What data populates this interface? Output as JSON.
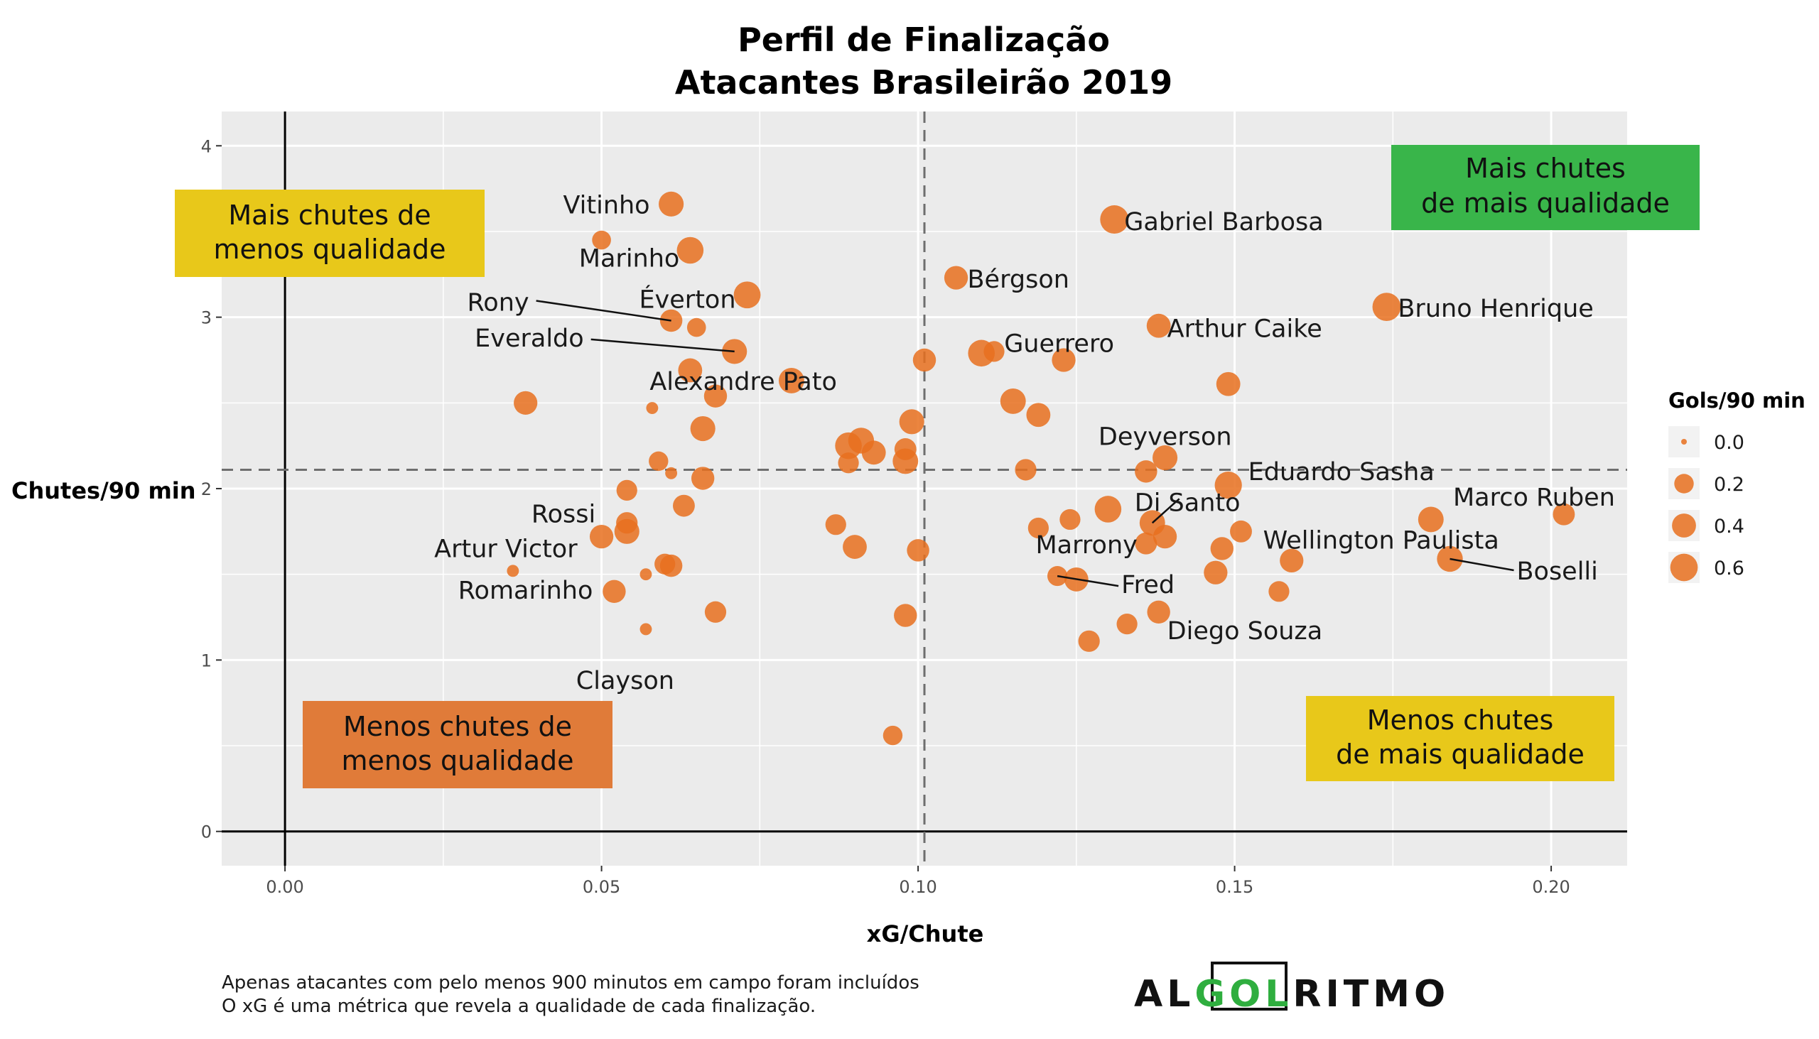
{
  "colors": {
    "point": "#E8701F",
    "panel": "#EBEBEB",
    "grid": "#FFFFFF",
    "box_yellow": "#E8C81A",
    "box_green": "#39B54A",
    "box_orange": "#E07B39",
    "logo_green": "#2FAE3F"
  },
  "footnote": {
    "line1": "Apenas atacantes com pelo menos 900 minutos em campo foram incluídos",
    "line2": "O xG é uma métrica que revela a qualidade de cada finalização."
  },
  "logo": {
    "part1": "AL",
    "part2": "GOL",
    "part3": "RITMO"
  },
  "quadrants": {
    "top_left": [
      "Mais chutes de",
      "menos qualidade"
    ],
    "top_right": [
      "Mais chutes",
      "de mais qualidade"
    ],
    "bottom_left": [
      "Menos chutes de",
      "menos qualidade"
    ],
    "bottom_right": [
      "Menos chutes",
      "de mais qualidade"
    ]
  },
  "chart_data": {
    "type": "scatter",
    "title": "Perfil de Finalização",
    "subtitle": "Atacantes Brasileirão 2019",
    "xlabel": "xG/Chute",
    "ylabel": "Chutes/90 min",
    "xlim": [
      -0.01,
      0.212
    ],
    "ylim": [
      -0.2,
      4.2
    ],
    "x_ticks": [
      0.0,
      0.05,
      0.1,
      0.15,
      0.2
    ],
    "x_tick_labels": [
      "0.00",
      "0.05",
      "0.10",
      "0.15",
      "0.20"
    ],
    "y_ticks": [
      0,
      1,
      2,
      3,
      4
    ],
    "y_tick_labels": [
      "0",
      "1",
      "2",
      "3",
      "4"
    ],
    "reference_lines": {
      "x": 0.101,
      "y": 2.11
    },
    "grid": true,
    "size_legend": {
      "title": "Gols/90 min",
      "position": "right",
      "values": [
        0.0,
        0.2,
        0.4,
        0.6
      ],
      "labels": [
        "0.0",
        "0.2",
        "0.4",
        "0.6"
      ]
    },
    "points": [
      {
        "x": 0.061,
        "y": 3.66,
        "g": 0.45,
        "label": "Vitinho"
      },
      {
        "x": 0.131,
        "y": 3.57,
        "g": 0.66,
        "label": "Gabriel Barbosa"
      },
      {
        "x": 0.05,
        "y": 3.45,
        "g": 0.18,
        "label": ""
      },
      {
        "x": 0.064,
        "y": 3.39,
        "g": 0.55,
        "label": "Marinho"
      },
      {
        "x": 0.106,
        "y": 3.23,
        "g": 0.38,
        "label": "Bérgson"
      },
      {
        "x": 0.073,
        "y": 3.13,
        "g": 0.56,
        "label": "Éverton"
      },
      {
        "x": 0.174,
        "y": 3.06,
        "g": 0.65,
        "label": "Bruno Henrique"
      },
      {
        "x": 0.061,
        "y": 2.98,
        "g": 0.32,
        "label": "Rony"
      },
      {
        "x": 0.138,
        "y": 2.95,
        "g": 0.4,
        "label": "Arthur Caike"
      },
      {
        "x": 0.065,
        "y": 2.94,
        "g": 0.18,
        "label": ""
      },
      {
        "x": 0.071,
        "y": 2.8,
        "g": 0.45,
        "label": "Everaldo"
      },
      {
        "x": 0.112,
        "y": 2.8,
        "g": 0.25,
        "label": ""
      },
      {
        "x": 0.11,
        "y": 2.79,
        "g": 0.55,
        "label": "Guerrero"
      },
      {
        "x": 0.101,
        "y": 2.75,
        "g": 0.35,
        "label": ""
      },
      {
        "x": 0.123,
        "y": 2.75,
        "g": 0.38,
        "label": ""
      },
      {
        "x": 0.064,
        "y": 2.69,
        "g": 0.4,
        "label": ""
      },
      {
        "x": 0.08,
        "y": 2.63,
        "g": 0.48,
        "label": "Alexandre Pato"
      },
      {
        "x": 0.149,
        "y": 2.61,
        "g": 0.4,
        "label": ""
      },
      {
        "x": 0.068,
        "y": 2.54,
        "g": 0.35,
        "label": ""
      },
      {
        "x": 0.115,
        "y": 2.51,
        "g": 0.48,
        "label": ""
      },
      {
        "x": 0.038,
        "y": 2.5,
        "g": 0.38,
        "label": ""
      },
      {
        "x": 0.058,
        "y": 2.47,
        "g": 0.02,
        "label": ""
      },
      {
        "x": 0.119,
        "y": 2.43,
        "g": 0.4,
        "label": ""
      },
      {
        "x": 0.099,
        "y": 2.39,
        "g": 0.45,
        "label": ""
      },
      {
        "x": 0.066,
        "y": 2.35,
        "g": 0.45,
        "label": ""
      },
      {
        "x": 0.091,
        "y": 2.28,
        "g": 0.5,
        "label": ""
      },
      {
        "x": 0.089,
        "y": 2.25,
        "g": 0.55,
        "label": ""
      },
      {
        "x": 0.098,
        "y": 2.23,
        "g": 0.3,
        "label": ""
      },
      {
        "x": 0.093,
        "y": 2.21,
        "g": 0.4,
        "label": ""
      },
      {
        "x": 0.139,
        "y": 2.18,
        "g": 0.45,
        "label": "Deyverson"
      },
      {
        "x": 0.098,
        "y": 2.16,
        "g": 0.48,
        "label": ""
      },
      {
        "x": 0.059,
        "y": 2.16,
        "g": 0.2,
        "label": ""
      },
      {
        "x": 0.089,
        "y": 2.15,
        "g": 0.25,
        "label": ""
      },
      {
        "x": 0.117,
        "y": 2.11,
        "g": 0.28,
        "label": ""
      },
      {
        "x": 0.136,
        "y": 2.1,
        "g": 0.32,
        "label": ""
      },
      {
        "x": 0.061,
        "y": 2.09,
        "g": 0.02,
        "label": ""
      },
      {
        "x": 0.066,
        "y": 2.06,
        "g": 0.35,
        "label": ""
      },
      {
        "x": 0.149,
        "y": 2.02,
        "g": 0.58,
        "label": "Eduardo Sasha"
      },
      {
        "x": 0.054,
        "y": 1.99,
        "g": 0.25,
        "label": ""
      },
      {
        "x": 0.063,
        "y": 1.9,
        "g": 0.3,
        "label": ""
      },
      {
        "x": 0.13,
        "y": 1.88,
        "g": 0.55,
        "label": ""
      },
      {
        "x": 0.202,
        "y": 1.85,
        "g": 0.3,
        "label": "Marco Ruben"
      },
      {
        "x": 0.124,
        "y": 1.82,
        "g": 0.25,
        "label": ""
      },
      {
        "x": 0.181,
        "y": 1.82,
        "g": 0.48,
        "label": "Wellington Paulista"
      },
      {
        "x": 0.137,
        "y": 1.8,
        "g": 0.48,
        "label": "Di Santo"
      },
      {
        "x": 0.054,
        "y": 1.8,
        "g": 0.28,
        "label": ""
      },
      {
        "x": 0.087,
        "y": 1.79,
        "g": 0.25,
        "label": ""
      },
      {
        "x": 0.119,
        "y": 1.77,
        "g": 0.25,
        "label": ""
      },
      {
        "x": 0.151,
        "y": 1.75,
        "g": 0.3,
        "label": ""
      },
      {
        "x": 0.054,
        "y": 1.75,
        "g": 0.45,
        "label": "Rossi"
      },
      {
        "x": 0.05,
        "y": 1.72,
        "g": 0.38,
        "label": "Artur Victor"
      },
      {
        "x": 0.139,
        "y": 1.72,
        "g": 0.38,
        "label": ""
      },
      {
        "x": 0.136,
        "y": 1.68,
        "g": 0.3,
        "label": "Marrony"
      },
      {
        "x": 0.09,
        "y": 1.66,
        "g": 0.4,
        "label": ""
      },
      {
        "x": 0.148,
        "y": 1.65,
        "g": 0.35,
        "label": ""
      },
      {
        "x": 0.1,
        "y": 1.64,
        "g": 0.32,
        "label": ""
      },
      {
        "x": 0.184,
        "y": 1.59,
        "g": 0.5,
        "label": "Boselli"
      },
      {
        "x": 0.159,
        "y": 1.58,
        "g": 0.38,
        "label": ""
      },
      {
        "x": 0.06,
        "y": 1.56,
        "g": 0.25,
        "label": ""
      },
      {
        "x": 0.061,
        "y": 1.55,
        "g": 0.32,
        "label": ""
      },
      {
        "x": 0.036,
        "y": 1.52,
        "g": 0.02,
        "label": ""
      },
      {
        "x": 0.147,
        "y": 1.51,
        "g": 0.38,
        "label": ""
      },
      {
        "x": 0.057,
        "y": 1.5,
        "g": 0.02,
        "label": ""
      },
      {
        "x": 0.122,
        "y": 1.49,
        "g": 0.22,
        "label": "Fred"
      },
      {
        "x": 0.125,
        "y": 1.47,
        "g": 0.4,
        "label": ""
      },
      {
        "x": 0.052,
        "y": 1.4,
        "g": 0.35,
        "label": "Romarinho"
      },
      {
        "x": 0.157,
        "y": 1.4,
        "g": 0.25,
        "label": ""
      },
      {
        "x": 0.068,
        "y": 1.28,
        "g": 0.28,
        "label": ""
      },
      {
        "x": 0.138,
        "y": 1.28,
        "g": 0.35,
        "label": "Diego Souza"
      },
      {
        "x": 0.098,
        "y": 1.26,
        "g": 0.35,
        "label": ""
      },
      {
        "x": 0.133,
        "y": 1.21,
        "g": 0.25,
        "label": ""
      },
      {
        "x": 0.057,
        "y": 1.18,
        "g": 0.02,
        "label": "Clayson"
      },
      {
        "x": 0.127,
        "y": 1.11,
        "g": 0.28,
        "label": ""
      },
      {
        "x": 0.096,
        "y": 0.56,
        "g": 0.2,
        "label": ""
      }
    ]
  }
}
